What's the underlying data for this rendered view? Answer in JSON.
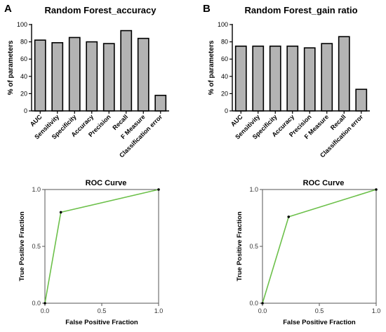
{
  "panels": {
    "A": "A",
    "B": "B"
  },
  "chart_data": [
    {
      "type": "bar",
      "title": "Random Forest_accuracy",
      "ylabel": "% of parameters",
      "xlabel": "",
      "ylim": [
        0,
        100
      ],
      "yticks": [
        0,
        20,
        40,
        60,
        80,
        100
      ],
      "categories": [
        "AUC",
        "Sensitivity",
        "Specificity",
        "Accuracy",
        "Precision",
        "Recall",
        "F Measure",
        "Classification error"
      ],
      "values": [
        82,
        79,
        85,
        80,
        78,
        93,
        84,
        18
      ],
      "bar_color": "#b3b3b3",
      "grid": false
    },
    {
      "type": "bar",
      "title": "Random Forest_gain ratio",
      "ylabel": "% of parameters",
      "xlabel": "",
      "ylim": [
        0,
        100
      ],
      "yticks": [
        0,
        20,
        40,
        60,
        80,
        100
      ],
      "categories": [
        "AUC",
        "Sensitivity",
        "Specificity",
        "Accuracy",
        "Precision",
        "F Measure",
        "Recall",
        "Classification error"
      ],
      "values": [
        75,
        75,
        75,
        75,
        73,
        78,
        86,
        25
      ],
      "bar_color": "#b3b3b3",
      "grid": false
    },
    {
      "type": "line",
      "title": "ROC Curve",
      "xlabel": "False Positive Fraction",
      "ylabel": "True Positive Fraction",
      "xlim": [
        0,
        1
      ],
      "ylim": [
        0,
        1
      ],
      "xticks": [
        "0.0",
        "0.5",
        "1.0"
      ],
      "yticks": [
        "0.0",
        "0.5",
        "1.0"
      ],
      "x": [
        0,
        0.14,
        1
      ],
      "y": [
        0,
        0.8,
        1
      ],
      "line_color": "#6cc04a",
      "grid": false
    },
    {
      "type": "line",
      "title": "ROC Curve",
      "xlabel": "False Positive Fraction",
      "ylabel": "True Positive Fraction",
      "xlim": [
        0,
        1
      ],
      "ylim": [
        0,
        1
      ],
      "xticks": [
        "0.0",
        "0.5",
        "1.0"
      ],
      "yticks": [
        "0.0",
        "0.5",
        "1.0"
      ],
      "x": [
        0,
        0.23,
        1
      ],
      "y": [
        0,
        0.76,
        1
      ],
      "line_color": "#6cc04a",
      "grid": false
    }
  ]
}
